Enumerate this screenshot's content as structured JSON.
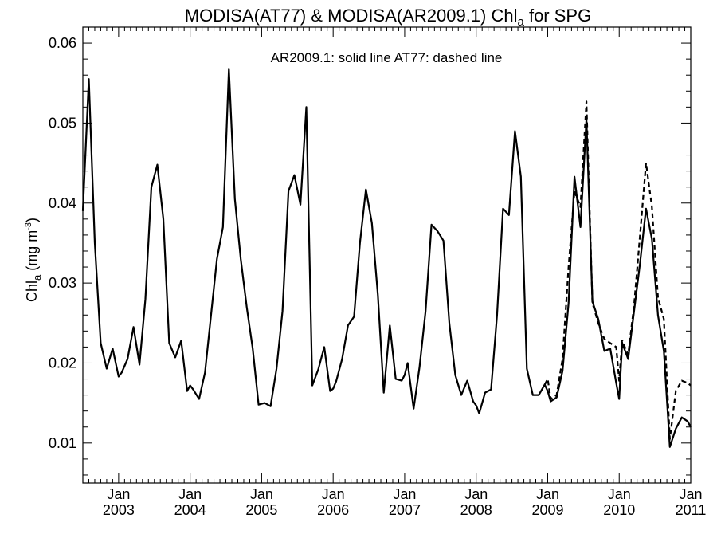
{
  "chart_data": {
    "type": "line",
    "title": "MODISA(AT77) & MODISA(AR2009.1)  Chl",
    "title_subscript": "a",
    "title_suffix": " for SPG",
    "ylabel": "Chl",
    "ylabel_subscript": "a",
    "ylabel_units": " (mg m",
    "ylabel_units_exp": "-3",
    "ylabel_units_close": ")",
    "annotation": "AR2009.1: solid line   AT77: dashed line",
    "xlim": [
      2002.5,
      2011.0
    ],
    "ylim": [
      0.005,
      0.062
    ],
    "yticks": [
      0.01,
      0.02,
      0.03,
      0.04,
      0.05,
      0.06
    ],
    "ytick_labels": [
      "0.01",
      "0.02",
      "0.03",
      "0.04",
      "0.05",
      "0.06"
    ],
    "xticks": [
      2003,
      2004,
      2005,
      2006,
      2007,
      2008,
      2009,
      2010,
      2011
    ],
    "xtick_labels_top": [
      "Jan",
      "Jan",
      "Jan",
      "Jan",
      "Jan",
      "Jan",
      "Jan",
      "Jan",
      "Jan"
    ],
    "xtick_labels_bottom": [
      "2003",
      "2004",
      "2005",
      "2006",
      "2007",
      "2008",
      "2009",
      "2010",
      "2011"
    ],
    "series": [
      {
        "name": "AR2009.1",
        "style": "solid",
        "color": "#000000",
        "x": [
          2002.5,
          2002.583,
          2002.667,
          2002.75,
          2002.833,
          2002.917,
          2003.0,
          2003.042,
          2003.125,
          2003.208,
          2003.292,
          2003.375,
          2003.458,
          2003.542,
          2003.625,
          2003.708,
          2003.792,
          2003.875,
          2003.958,
          2004.0,
          2004.042,
          2004.125,
          2004.208,
          2004.292,
          2004.375,
          2004.458,
          2004.542,
          2004.625,
          2004.708,
          2004.792,
          2004.875,
          2004.958,
          2005.042,
          2005.125,
          2005.208,
          2005.292,
          2005.375,
          2005.458,
          2005.542,
          2005.625,
          2005.708,
          2005.792,
          2005.875,
          2005.958,
          2006.0,
          2006.042,
          2006.125,
          2006.208,
          2006.292,
          2006.375,
          2006.458,
          2006.542,
          2006.625,
          2006.708,
          2006.792,
          2006.875,
          2006.958,
          2007.0,
          2007.042,
          2007.125,
          2007.208,
          2007.292,
          2007.375,
          2007.458,
          2007.542,
          2007.625,
          2007.708,
          2007.792,
          2007.875,
          2007.958,
          2008.0,
          2008.042,
          2008.125,
          2008.208,
          2008.292,
          2008.375,
          2008.458,
          2008.542,
          2008.625,
          2008.708,
          2008.792,
          2008.875,
          2008.958,
          2009.0,
          2009.042,
          2009.125,
          2009.208,
          2009.292,
          2009.375,
          2009.458,
          2009.542,
          2009.625,
          2009.708,
          2009.792,
          2009.875,
          2009.958,
          2010.0,
          2010.042,
          2010.125,
          2010.208,
          2010.292,
          2010.375,
          2010.458,
          2010.542,
          2010.625,
          2010.708,
          2010.792,
          2010.875,
          2010.958,
          2011.0
        ],
        "values": [
          0.039,
          0.0555,
          0.035,
          0.0225,
          0.0193,
          0.0218,
          0.0183,
          0.0188,
          0.0205,
          0.0245,
          0.0198,
          0.028,
          0.042,
          0.0448,
          0.038,
          0.0225,
          0.0207,
          0.0228,
          0.0165,
          0.0172,
          0.0167,
          0.0155,
          0.0188,
          0.026,
          0.033,
          0.037,
          0.0568,
          0.0405,
          0.033,
          0.027,
          0.0218,
          0.0148,
          0.015,
          0.0146,
          0.0193,
          0.0265,
          0.0415,
          0.0435,
          0.0398,
          0.052,
          0.0172,
          0.0192,
          0.022,
          0.0165,
          0.0168,
          0.0177,
          0.0205,
          0.0247,
          0.0258,
          0.035,
          0.0417,
          0.0375,
          0.0285,
          0.0163,
          0.0247,
          0.018,
          0.0178,
          0.0185,
          0.02,
          0.0143,
          0.0195,
          0.0265,
          0.0373,
          0.0365,
          0.0353,
          0.025,
          0.0185,
          0.016,
          0.0178,
          0.0152,
          0.0147,
          0.0137,
          0.0163,
          0.0167,
          0.026,
          0.0393,
          0.0385,
          0.049,
          0.0433,
          0.0193,
          0.016,
          0.016,
          0.0173,
          0.0165,
          0.0152,
          0.0157,
          0.019,
          0.0275,
          0.0433,
          0.037,
          0.0505,
          0.0277,
          0.0255,
          0.0215,
          0.0218,
          0.0175,
          0.0155,
          0.0225,
          0.0205,
          0.0265,
          0.0325,
          0.0393,
          0.0355,
          0.026,
          0.0215,
          0.0095,
          0.0118,
          0.0132,
          0.0127,
          0.012
        ]
      },
      {
        "name": "AT77",
        "style": "dashed",
        "color": "#000000",
        "x": [
          2008.958,
          2009.0,
          2009.042,
          2009.125,
          2009.208,
          2009.292,
          2009.375,
          2009.458,
          2009.542,
          2009.625,
          2009.708,
          2009.792,
          2009.875,
          2009.958,
          2010.0,
          2010.042,
          2010.125,
          2010.208,
          2010.292,
          2010.375,
          2010.458,
          2010.542,
          2010.625,
          2010.708,
          2010.792,
          2010.875,
          2010.958,
          2011.0
        ],
        "values": [
          0.0173,
          0.018,
          0.0155,
          0.016,
          0.0205,
          0.032,
          0.0415,
          0.0395,
          0.0527,
          0.0275,
          0.025,
          0.023,
          0.0225,
          0.022,
          0.0178,
          0.0228,
          0.021,
          0.0272,
          0.036,
          0.045,
          0.0395,
          0.0282,
          0.0255,
          0.0105,
          0.0165,
          0.0178,
          0.0175,
          0.0172
        ]
      }
    ]
  }
}
